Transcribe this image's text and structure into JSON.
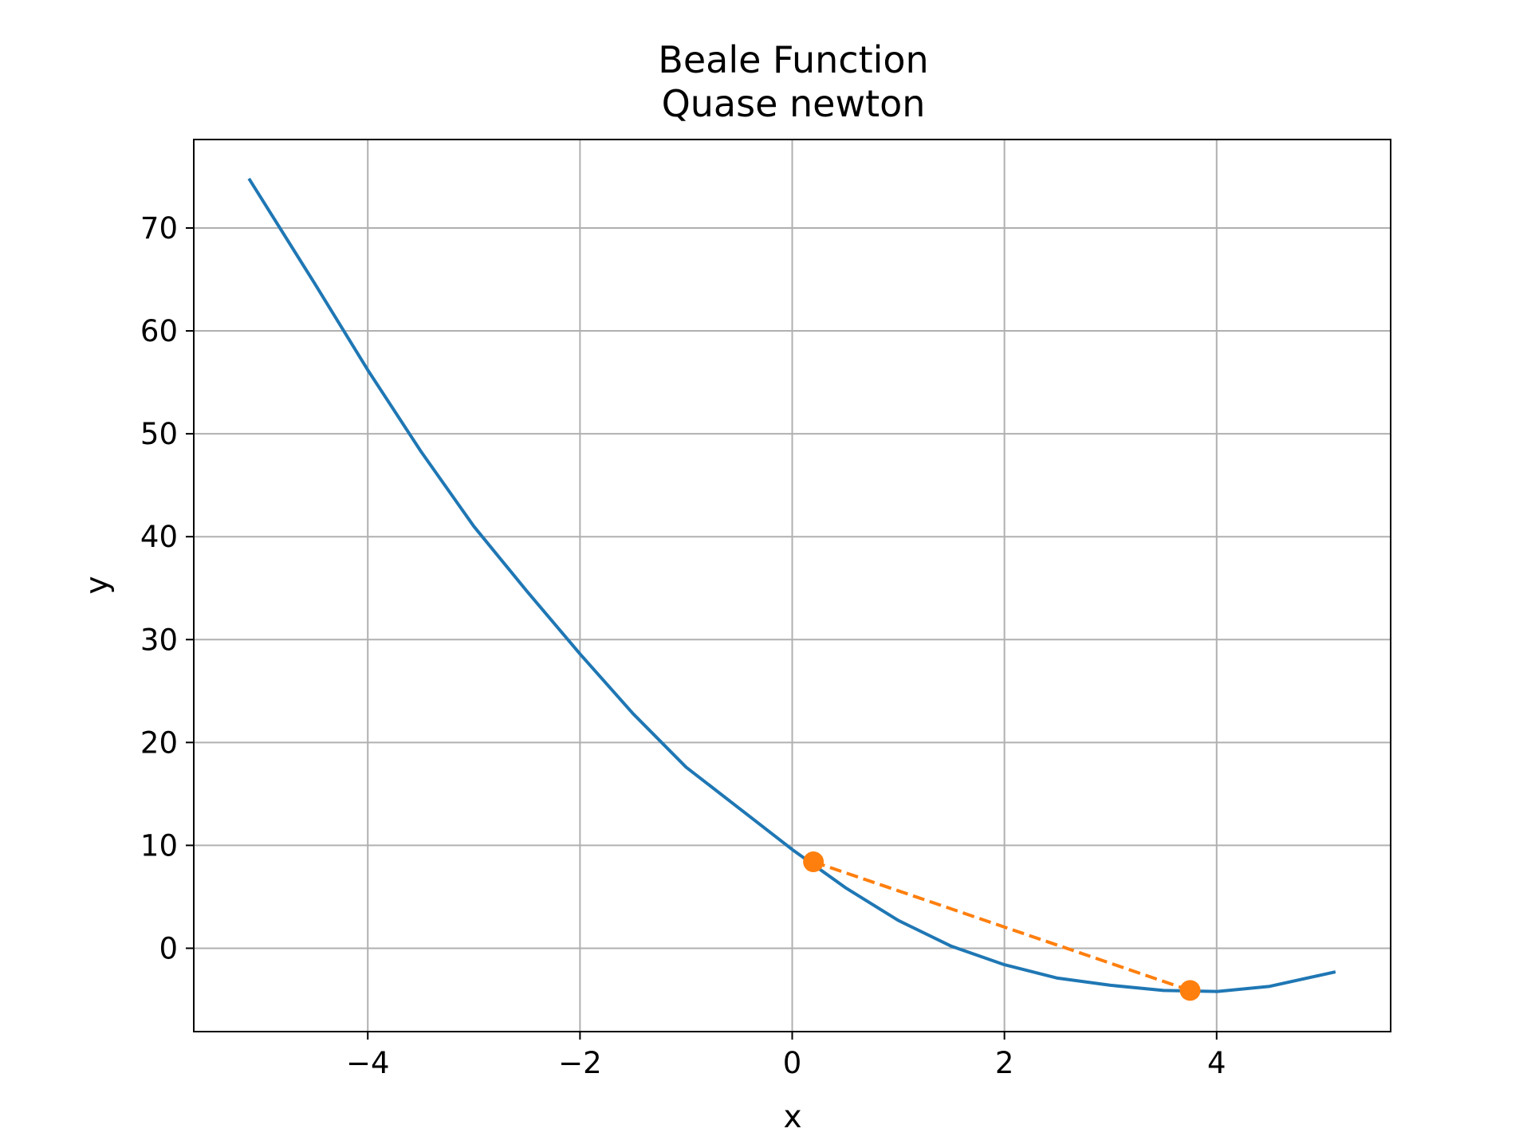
{
  "chart_data": {
    "type": "line",
    "title": "Beale Function",
    "subtitle": "Quase newton",
    "xlabel": "x",
    "ylabel": "y",
    "xlim": [
      -5.64,
      5.64
    ],
    "ylim": [
      -8.1,
      78.6
    ],
    "x_ticks": [
      -4,
      -2,
      0,
      2,
      4
    ],
    "x_tick_labels": [
      "−4",
      "−2",
      "0",
      "2",
      "4"
    ],
    "y_ticks": [
      0,
      10,
      20,
      30,
      40,
      50,
      60,
      70
    ],
    "y_tick_labels": [
      "0",
      "10",
      "20",
      "30",
      "40",
      "50",
      "60",
      "70"
    ],
    "grid": true,
    "series": [
      {
        "kind": "line",
        "color": "#1f77b4",
        "style": "solid",
        "x": [
          -5.12,
          -4.5,
          -4.0,
          -3.5,
          -3.0,
          -2.5,
          -2.0,
          -1.5,
          -1.0,
          -0.5,
          0.0,
          0.5,
          1.0,
          1.5,
          2.0,
          2.5,
          3.0,
          3.5,
          4.0,
          4.5,
          5.12
        ],
        "y": [
          74.8,
          64.6,
          56.2,
          48.3,
          41.0,
          34.7,
          28.6,
          22.8,
          17.6,
          13.6,
          9.6,
          5.9,
          2.7,
          0.2,
          -1.6,
          -2.9,
          -3.6,
          -4.1,
          -4.2,
          -3.7,
          -2.3
        ]
      },
      {
        "kind": "path",
        "color": "#ff7f0e",
        "style": "dashed",
        "markers": true,
        "x": [
          0.2,
          3.75
        ],
        "y": [
          8.4,
          -4.1
        ]
      }
    ]
  }
}
